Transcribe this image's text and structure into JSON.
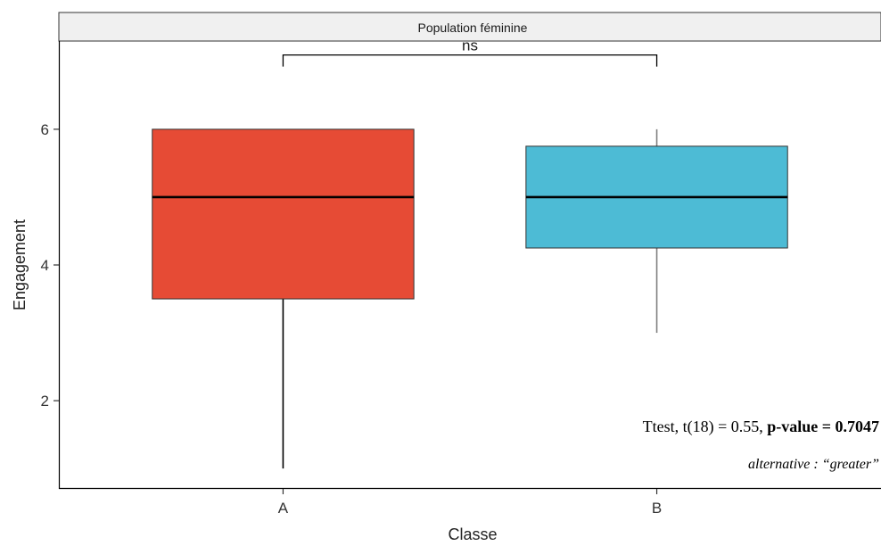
{
  "chart_data": {
    "type": "boxplot",
    "facet_title": "Population féminine",
    "xlabel": "Classe",
    "ylabel": "Engagement",
    "ylim": [
      0.7,
      7.3
    ],
    "yticks": [
      2,
      4,
      6
    ],
    "grid": false,
    "legend": "none",
    "categories": [
      "A",
      "B"
    ],
    "boxes": [
      {
        "category": "A",
        "min": 1,
        "q1": 3.5,
        "median": 5,
        "q3": 6,
        "max": 6,
        "color": "#E64B35",
        "whisker_color": "#000000"
      },
      {
        "category": "B",
        "min": 3,
        "q1": 4.25,
        "median": 5,
        "q3": 5.75,
        "max": 6,
        "color": "#4DBBD5",
        "whisker_color": "#808080"
      }
    ],
    "significance": {
      "groups": [
        "A",
        "B"
      ],
      "label": "ns",
      "y": 6.95
    },
    "annotations": {
      "test_prefix": "Ttest, t(18) = 0.55, ",
      "test_bold": "p-value = 0.7047",
      "alternative": "alternative : “greater”"
    }
  }
}
